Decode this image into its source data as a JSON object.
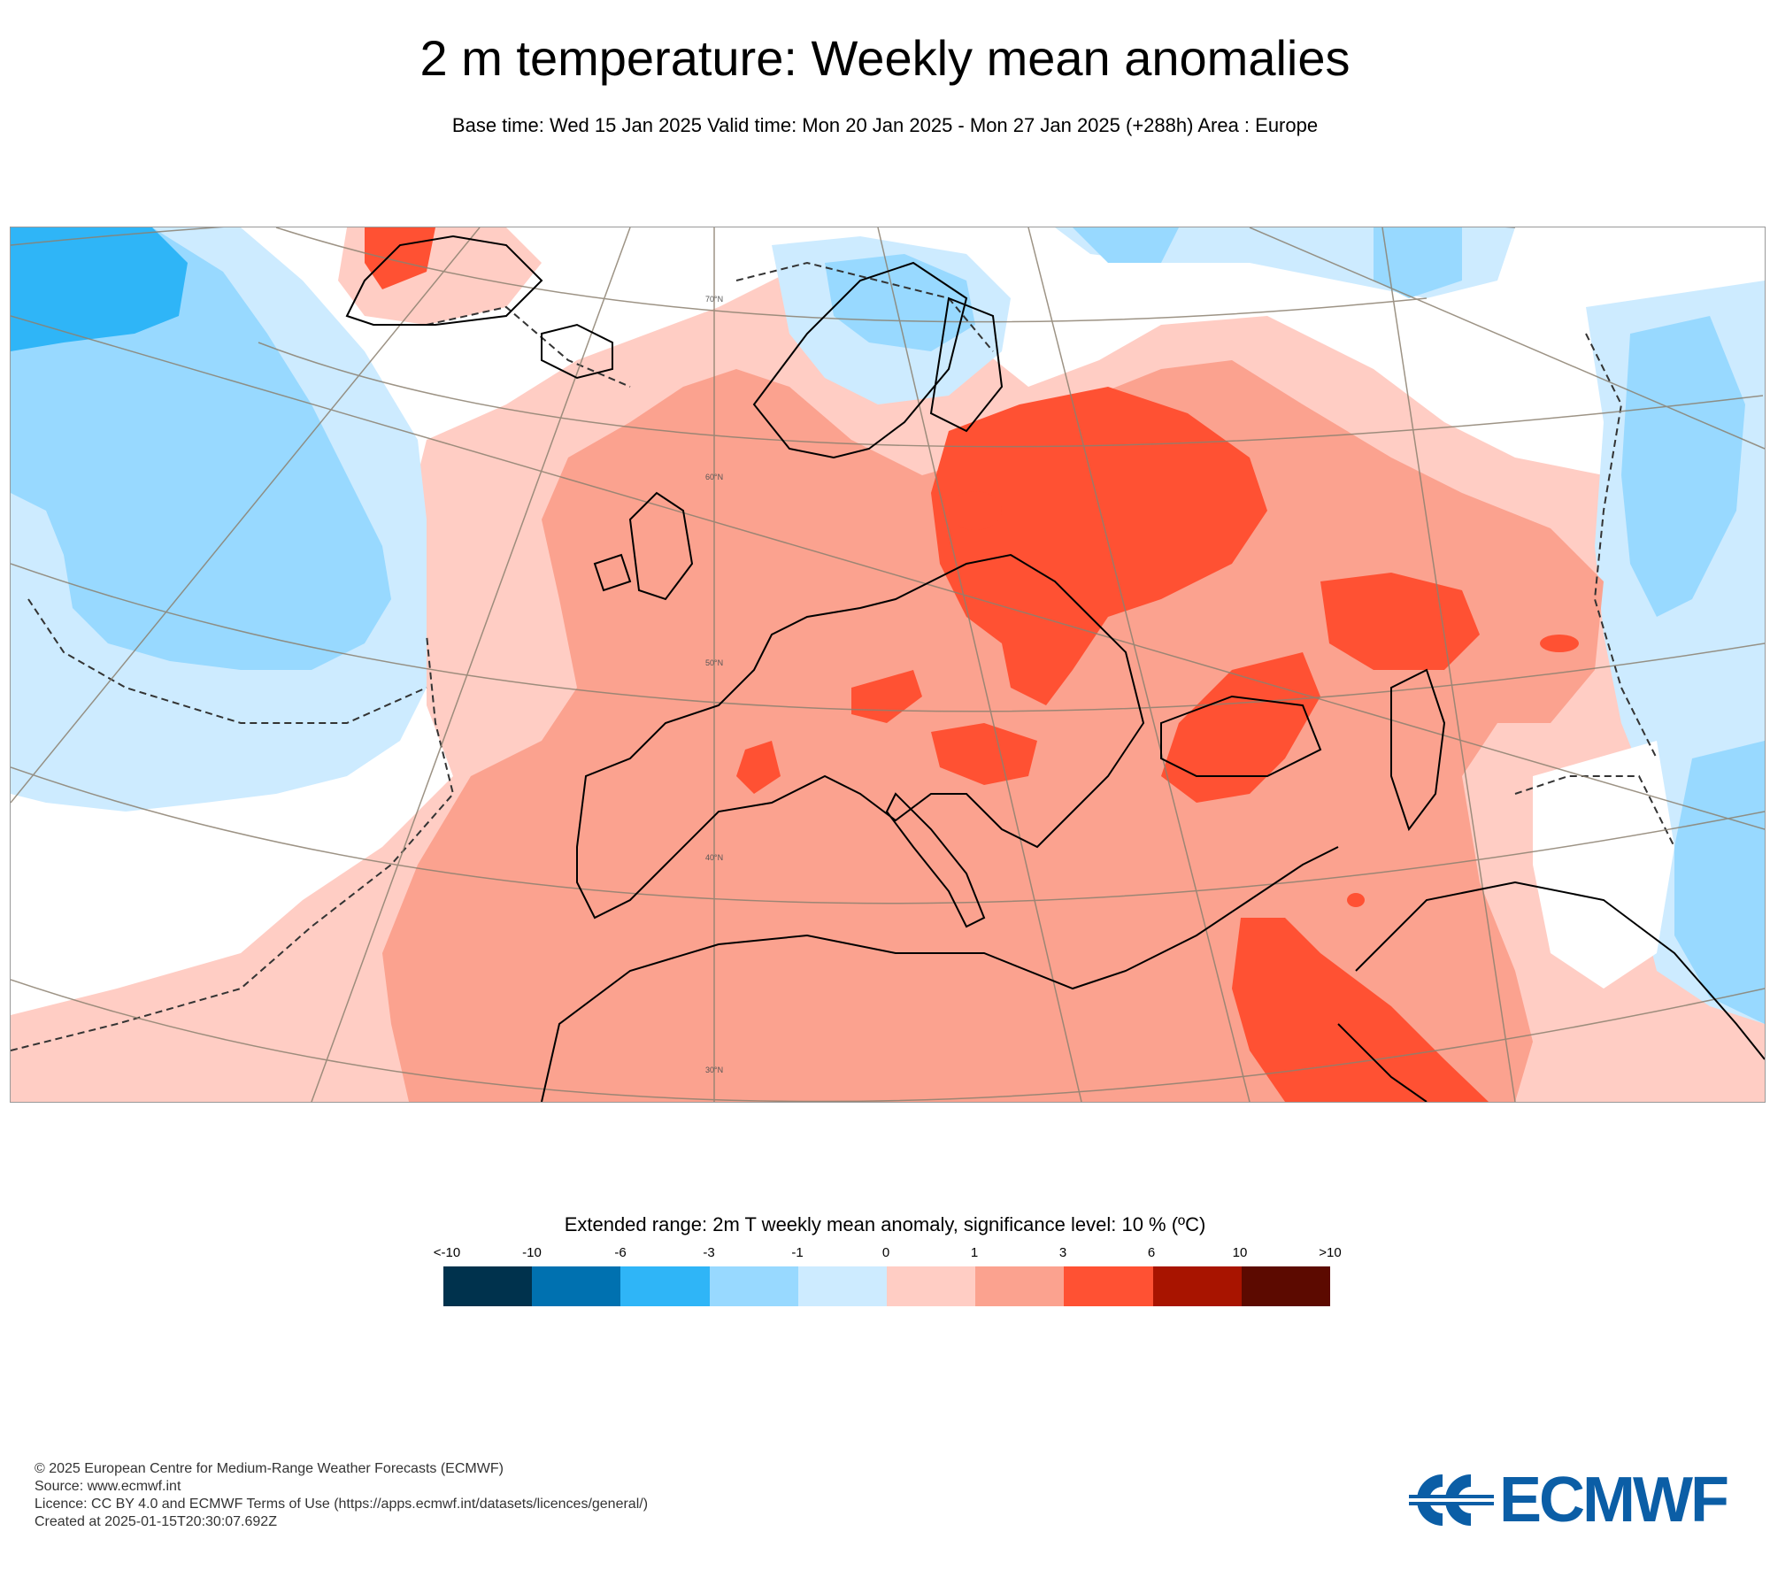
{
  "header": {
    "title": "2 m temperature: Weekly mean anomalies",
    "subtitle": "Base time: Wed 15 Jan 2025 Valid time: Mon 20 Jan 2025 - Mon 27 Jan 2025 (+288h) Area : Europe"
  },
  "map": {
    "lat_labels": [
      "70°N",
      "60°N",
      "50°N",
      "40°N",
      "30°N"
    ],
    "colors": {
      "ocean_neutral": "#ffffff",
      "coast": "#000000",
      "graticule": "#8c8170"
    }
  },
  "legend": {
    "title": "Extended range: 2m T weekly mean anomaly, significance level: 10 % (ºC)",
    "labels": [
      "<-10",
      "-10",
      "-6",
      "-3",
      "-1",
      "0",
      "1",
      "3",
      "6",
      "10",
      ">10"
    ],
    "colors": [
      "#00324d",
      "#0071b0",
      "#2fb5f7",
      "#98d9ff",
      "#cdebff",
      "#ffcdc4",
      "#fba28f",
      "#ff5133",
      "#a81400",
      "#5c0a00"
    ]
  },
  "footer": {
    "copyright": "© 2025 European Centre for Medium-Range Weather Forecasts (ECMWF)",
    "source": "Source: www.ecmwf.int",
    "licence": "Licence: CC BY 4.0 and ECMWF Terms of Use (https://apps.ecmwf.int/datasets/licences/general/)",
    "created": "Created at 2025-01-15T20:30:07.692Z"
  },
  "logo": {
    "text": "ECMWF",
    "color": "#0b5ea6"
  }
}
